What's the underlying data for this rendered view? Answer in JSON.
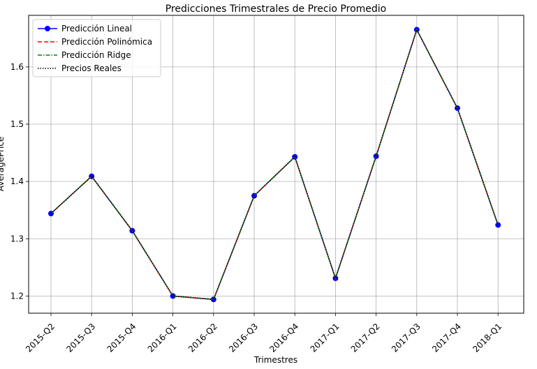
{
  "chart_data": {
    "type": "line",
    "title": "Predicciones Trimestrales de Precio Promedio",
    "xlabel": "Trimestres",
    "ylabel": "AveragePrice",
    "categories": [
      "2015-Q2",
      "2015-Q3",
      "2015-Q4",
      "2016-Q1",
      "2016-Q2",
      "2016-Q3",
      "2016-Q4",
      "2017-Q1",
      "2017-Q2",
      "2017-Q3",
      "2017-Q4",
      "2018-Q1"
    ],
    "ylim": [
      1.17,
      1.69
    ],
    "yticks": [
      1.2,
      1.3,
      1.4,
      1.5,
      1.6
    ],
    "ytick_labels": [
      "1.2",
      "1.3",
      "1.4",
      "1.5",
      "1.6"
    ],
    "grid": true,
    "legend_position": "upper-left",
    "series": [
      {
        "name": "Predicción Lineal",
        "color": "#0000ff",
        "style": "solid-marker",
        "values": [
          1.344,
          1.409,
          1.314,
          1.2,
          1.194,
          1.375,
          1.443,
          1.231,
          1.444,
          1.665,
          1.528,
          1.324
        ]
      },
      {
        "name": "Predicción Polinómica",
        "color": "#ff0000",
        "style": "dashed",
        "values": [
          1.344,
          1.409,
          1.314,
          1.2,
          1.194,
          1.375,
          1.443,
          1.231,
          1.444,
          1.665,
          1.528,
          1.324
        ]
      },
      {
        "name": "Predicción Ridge",
        "color": "#008000",
        "style": "dashdot",
        "values": [
          1.344,
          1.409,
          1.314,
          1.2,
          1.194,
          1.375,
          1.443,
          1.231,
          1.444,
          1.665,
          1.528,
          1.324
        ]
      },
      {
        "name": "Precios Reales",
        "color": "#000000",
        "style": "dotted",
        "values": [
          1.344,
          1.409,
          1.314,
          1.2,
          1.194,
          1.375,
          1.443,
          1.231,
          1.444,
          1.665,
          1.528,
          1.324
        ]
      }
    ]
  }
}
